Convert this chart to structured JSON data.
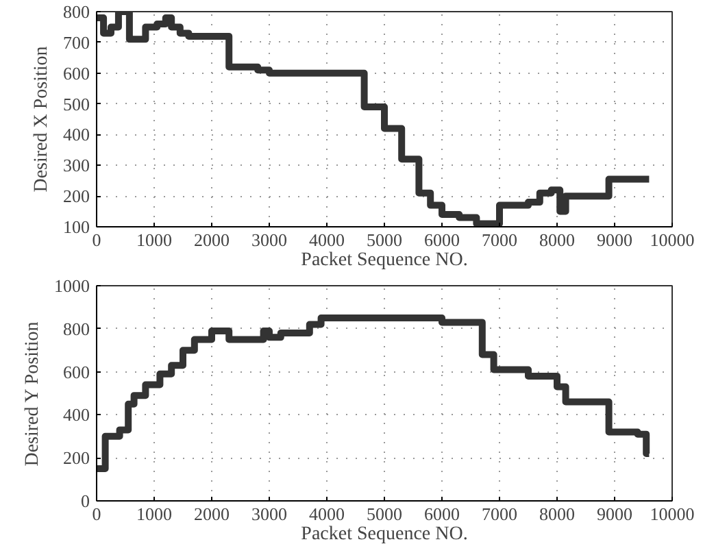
{
  "chart_data": [
    {
      "type": "step",
      "xlabel": "Packet Sequence NO.",
      "ylabel": "Desired X Position",
      "grid": true,
      "line_style": "solid",
      "xlim": [
        0,
        10000
      ],
      "ylim": [
        100,
        800
      ],
      "xticks": [
        0,
        1000,
        2000,
        3000,
        4000,
        5000,
        6000,
        7000,
        8000,
        9000,
        10000
      ],
      "yticks": [
        100,
        200,
        300,
        400,
        500,
        600,
        700,
        800
      ],
      "series": [
        {
          "color": "#333333",
          "x": [
            0,
            120,
            250,
            380,
            570,
            850,
            1050,
            1200,
            1300,
            1450,
            1600,
            2300,
            2800,
            3000,
            4650,
            5000,
            5300,
            5600,
            5800,
            6000,
            6300,
            6600,
            7000,
            7500,
            7700,
            7900,
            8050,
            8150,
            8900,
            9600
          ],
          "values": [
            780,
            730,
            750,
            800,
            710,
            750,
            760,
            780,
            750,
            730,
            720,
            620,
            610,
            600,
            490,
            420,
            320,
            210,
            170,
            140,
            130,
            110,
            170,
            180,
            210,
            220,
            150,
            200,
            255,
            255
          ]
        }
      ]
    },
    {
      "type": "step",
      "xlabel": "Packet Sequence NO.",
      "ylabel": "Desired Y Position",
      "grid": true,
      "line_style": "solid",
      "xlim": [
        0,
        10000
      ],
      "ylim": [
        0,
        1000
      ],
      "xticks": [
        0,
        1000,
        2000,
        3000,
        4000,
        5000,
        6000,
        7000,
        8000,
        9000,
        10000
      ],
      "yticks": [
        0,
        200,
        400,
        600,
        800,
        1000
      ],
      "series": [
        {
          "color": "#333333",
          "x": [
            0,
            150,
            400,
            550,
            650,
            850,
            1100,
            1300,
            1500,
            1700,
            2000,
            2300,
            2900,
            3000,
            3200,
            3700,
            3900,
            6000,
            6700,
            6900,
            7500,
            8000,
            8150,
            8900,
            9400,
            9550,
            9600
          ],
          "values": [
            150,
            300,
            330,
            450,
            490,
            540,
            590,
            630,
            700,
            750,
            790,
            750,
            790,
            760,
            780,
            820,
            850,
            830,
            680,
            610,
            580,
            530,
            460,
            320,
            310,
            220,
            220
          ]
        }
      ]
    }
  ]
}
